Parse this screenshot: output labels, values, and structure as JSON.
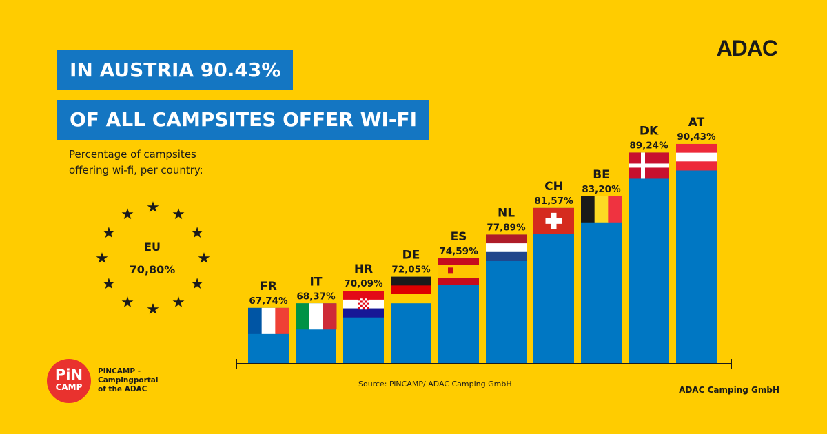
{
  "brand": "ADAC",
  "headline": {
    "line1": "IN AUSTRIA 90.43%",
    "line2": "OF ALL CAMPSITES OFFER WI-FI"
  },
  "subtitle": {
    "line1": "Percentage of campsites",
    "line2": "offering wi-fi, per country:"
  },
  "eu": {
    "label": "EU",
    "value": "70,80%"
  },
  "chart_data": {
    "type": "bar",
    "categories": [
      "FR",
      "IT",
      "HR",
      "DE",
      "ES",
      "NL",
      "CH",
      "BE",
      "DK",
      "AT"
    ],
    "values": [
      67.74,
      68.37,
      70.09,
      72.05,
      74.59,
      77.89,
      81.57,
      83.2,
      89.24,
      90.43
    ],
    "labels": [
      "67,74%",
      "68,37%",
      "70,09%",
      "72,05%",
      "74,59%",
      "77,89%",
      "81,57%",
      "83,20%",
      "89,24%",
      "90,43%"
    ],
    "title": "",
    "xlabel": "",
    "ylabel": "",
    "grid": false,
    "bar_color": "#0077C3"
  },
  "source": "Source: PiNCAMP/ ADAC Camping GmbH",
  "logo": {
    "top": "PiN",
    "bottom": "CAMP",
    "caption": [
      "PiNCAMP -",
      "Campingportal",
      "of the ADAC"
    ]
  },
  "footer": "ADAC Camping GmbH",
  "colors": {
    "background": "#FFCC00",
    "headline_bg": "#1476C2",
    "bar": "#0077C3",
    "logo": "#E9322E"
  }
}
